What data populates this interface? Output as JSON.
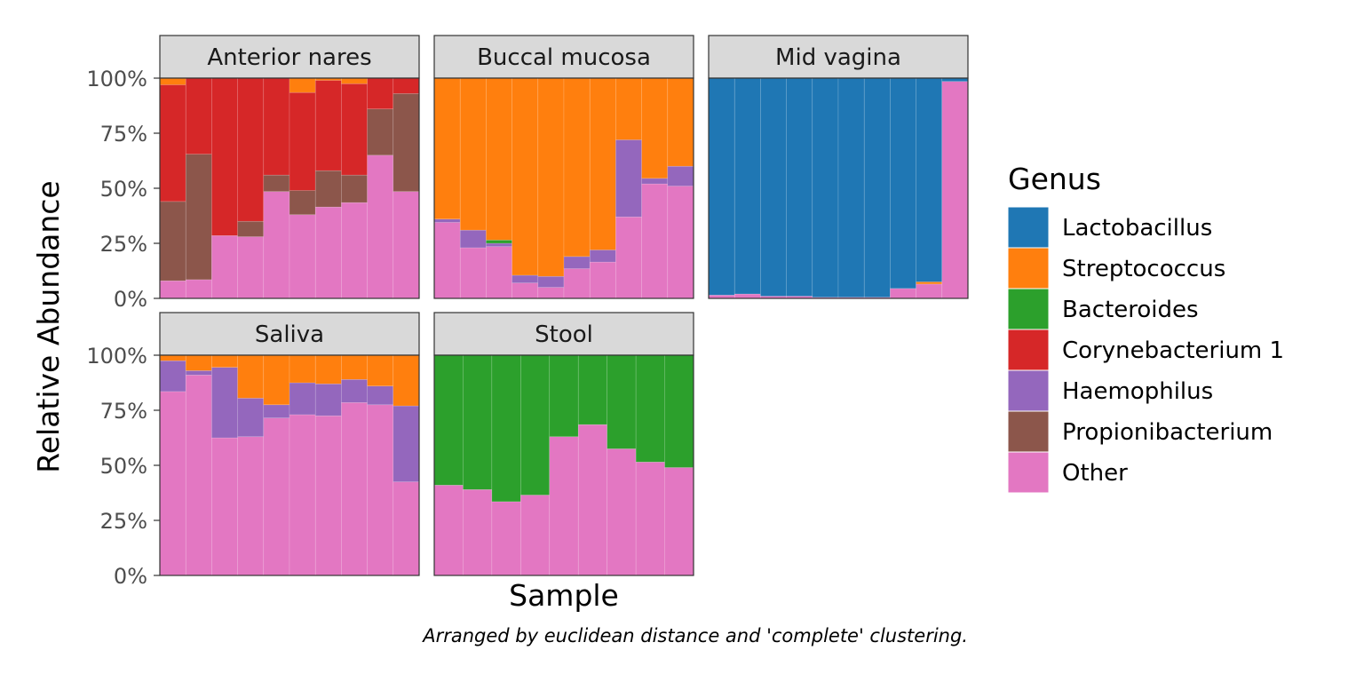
{
  "chart_data": {
    "type": "bar",
    "stacked": true,
    "y_axis_label": "Relative Abundance",
    "x_axis_label": "Sample",
    "caption": "Arranged by euclidean distance and 'complete' clustering.",
    "y_range": [
      0,
      100
    ],
    "y_ticks": [
      "0%",
      "25%",
      "50%",
      "75%",
      "100%"
    ],
    "y_tick_values": [
      0,
      25,
      50,
      75,
      100
    ],
    "legend_title": "Genus",
    "legend_position": "right",
    "grid": false,
    "genera": [
      "Lactobacillus",
      "Streptococcus",
      "Bacteroides",
      "Corynebacterium 1",
      "Haemophilus",
      "Propionibacterium",
      "Other"
    ],
    "colors": {
      "Lactobacillus": "#1F77B4",
      "Streptococcus": "#FF7F0E",
      "Bacteroides": "#2CA02C",
      "Corynebacterium 1": "#D62728",
      "Haemophilus": "#9467BD",
      "Propionibacterium": "#8C564B",
      "Other": "#E377C2"
    },
    "panels": [
      {
        "name": "Anterior nares",
        "samples": [
          {
            "Other": 8,
            "Propionibacterium": 36,
            "Corynebacterium 1": 53,
            "Streptococcus": 3
          },
          {
            "Other": 8.5,
            "Propionibacterium": 57,
            "Corynebacterium 1": 34.5
          },
          {
            "Other": 28.5,
            "Corynebacterium 1": 71.5
          },
          {
            "Other": 28,
            "Propionibacterium": 7,
            "Corynebacterium 1": 65
          },
          {
            "Other": 48.5,
            "Propionibacterium": 7.5,
            "Corynebacterium 1": 44
          },
          {
            "Other": 38,
            "Propionibacterium": 11,
            "Corynebacterium 1": 44.5,
            "Streptococcus": 6.5
          },
          {
            "Other": 41.5,
            "Propionibacterium": 16.5,
            "Corynebacterium 1": 41,
            "Streptococcus": 1
          },
          {
            "Other": 43.5,
            "Propionibacterium": 12.5,
            "Corynebacterium 1": 41.5,
            "Streptococcus": 2.5
          },
          {
            "Other": 65,
            "Propionibacterium": 21,
            "Corynebacterium 1": 14
          },
          {
            "Other": 48.5,
            "Propionibacterium": 44.5,
            "Corynebacterium 1": 7
          }
        ]
      },
      {
        "name": "Buccal mucosa",
        "samples": [
          {
            "Other": 34.5,
            "Haemophilus": 1.5,
            "Streptococcus": 64
          },
          {
            "Other": 23,
            "Haemophilus": 8,
            "Streptococcus": 69
          },
          {
            "Other": 23.5,
            "Haemophilus": 1.5,
            "Bacteroides": 1.5,
            "Streptococcus": 73.5
          },
          {
            "Other": 7,
            "Haemophilus": 3.5,
            "Streptococcus": 89.5
          },
          {
            "Other": 5,
            "Haemophilus": 5,
            "Streptococcus": 90
          },
          {
            "Other": 13.5,
            "Haemophilus": 5.5,
            "Streptococcus": 81
          },
          {
            "Other": 16.5,
            "Haemophilus": 5.5,
            "Streptococcus": 78
          },
          {
            "Other": 37,
            "Haemophilus": 35,
            "Streptococcus": 28
          },
          {
            "Other": 52,
            "Haemophilus": 2.5,
            "Streptococcus": 45.5
          },
          {
            "Other": 51,
            "Haemophilus": 9,
            "Streptococcus": 40
          }
        ]
      },
      {
        "name": "Mid vagina",
        "samples": [
          {
            "Other": 1.5,
            "Lactobacillus": 98.5
          },
          {
            "Other": 2,
            "Lactobacillus": 98
          },
          {
            "Other": 1,
            "Lactobacillus": 99
          },
          {
            "Other": 1,
            "Lactobacillus": 99
          },
          {
            "Other": 0.5,
            "Lactobacillus": 99.5
          },
          {
            "Other": 0.5,
            "Lactobacillus": 99.5
          },
          {
            "Other": 0.5,
            "Lactobacillus": 99.5
          },
          {
            "Other": 4.5,
            "Lactobacillus": 95.5
          },
          {
            "Other": 6.5,
            "Streptococcus": 1,
            "Lactobacillus": 92.5
          },
          {
            "Other": 98.5,
            "Lactobacillus": 1.5
          }
        ]
      },
      {
        "name": "Saliva",
        "samples": [
          {
            "Other": 83.5,
            "Haemophilus": 14,
            "Streptococcus": 2.5
          },
          {
            "Other": 91,
            "Haemophilus": 2,
            "Streptococcus": 7
          },
          {
            "Other": 62.5,
            "Haemophilus": 32,
            "Streptococcus": 5.5
          },
          {
            "Other": 63,
            "Haemophilus": 17.5,
            "Streptococcus": 19.5
          },
          {
            "Other": 71.5,
            "Haemophilus": 6,
            "Streptococcus": 22.5
          },
          {
            "Other": 73,
            "Haemophilus": 14.5,
            "Streptococcus": 12.5
          },
          {
            "Other": 72.5,
            "Haemophilus": 14.5,
            "Streptococcus": 13
          },
          {
            "Other": 78.5,
            "Haemophilus": 10.5,
            "Streptococcus": 11
          },
          {
            "Other": 77.5,
            "Haemophilus": 8.5,
            "Streptococcus": 14
          },
          {
            "Other": 42.5,
            "Haemophilus": 34.5,
            "Streptococcus": 23
          }
        ]
      },
      {
        "name": "Stool",
        "samples": [
          {
            "Other": 41,
            "Bacteroides": 59
          },
          {
            "Other": 39,
            "Bacteroides": 61
          },
          {
            "Other": 33.5,
            "Bacteroides": 66.5
          },
          {
            "Other": 36.5,
            "Bacteroides": 63.5
          },
          {
            "Other": 63,
            "Bacteroides": 37
          },
          {
            "Other": 68.5,
            "Bacteroides": 31.5
          },
          {
            "Other": 57.5,
            "Bacteroides": 42.5
          },
          {
            "Other": 51.5,
            "Bacteroides": 48.5
          },
          {
            "Other": 49,
            "Bacteroides": 51
          }
        ]
      }
    ]
  }
}
